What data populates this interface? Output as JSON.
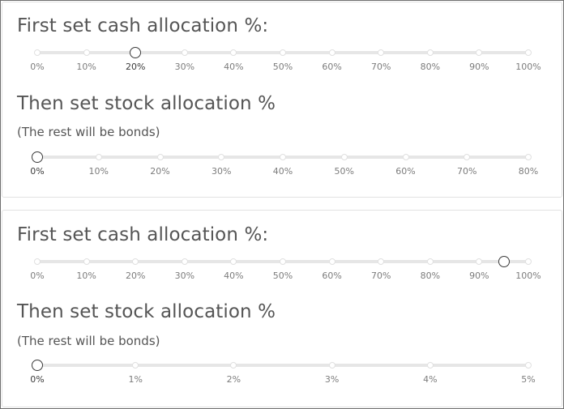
{
  "panels": [
    {
      "cash": {
        "heading": "First set cash allocation %:",
        "ticks": [
          "0%",
          "10%",
          "20%",
          "30%",
          "40%",
          "50%",
          "60%",
          "70%",
          "80%",
          "90%",
          "100%"
        ],
        "value_fraction": 0.2,
        "active_tick": 2
      },
      "stock": {
        "heading": "Then set stock allocation %",
        "note": "(The rest will be bonds)",
        "ticks": [
          "0%",
          "10%",
          "20%",
          "30%",
          "40%",
          "50%",
          "60%",
          "70%",
          "80%"
        ],
        "value_fraction": 0,
        "active_tick": 0
      }
    },
    {
      "cash": {
        "heading": "First set cash allocation %:",
        "ticks": [
          "0%",
          "10%",
          "20%",
          "30%",
          "40%",
          "50%",
          "60%",
          "70%",
          "80%",
          "90%",
          "100%"
        ],
        "value_fraction": 0.95,
        "active_tick": -1
      },
      "stock": {
        "heading": "Then set stock allocation %",
        "note": "(The rest will be bonds)",
        "ticks": [
          "0%",
          "1%",
          "2%",
          "3%",
          "4%",
          "5%"
        ],
        "value_fraction": 0,
        "active_tick": 0
      }
    }
  ]
}
